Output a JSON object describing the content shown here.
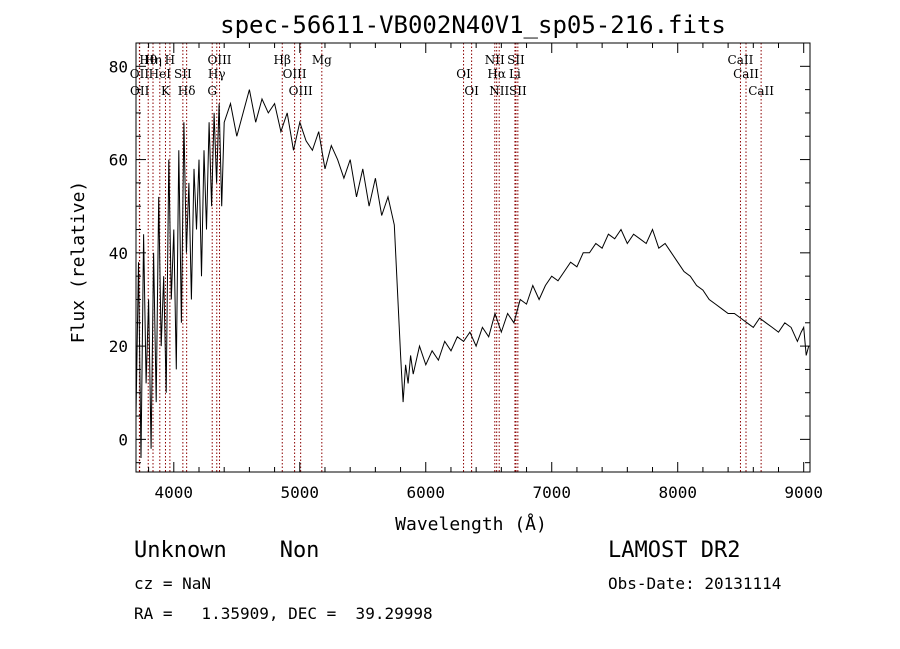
{
  "chart_data": {
    "type": "line",
    "title": "spec-56611-VB002N40V1_sp05-216.fits",
    "xlabel": "Wavelength (Å)",
    "ylabel": "Flux (relative)",
    "xlim": [
      3700,
      9050
    ],
    "ylim": [
      -7,
      85
    ],
    "xticks": [
      4000,
      5000,
      6000,
      7000,
      8000,
      9000
    ],
    "yticks": [
      0,
      20,
      40,
      60,
      80
    ],
    "grid": false,
    "line_color": "#000000",
    "marker_color": "#8b0000",
    "series": [
      {
        "x": [
          3700,
          3720,
          3740,
          3760,
          3780,
          3800,
          3820,
          3840,
          3860,
          3880,
          3900,
          3920,
          3940,
          3960,
          3980,
          4000,
          4020,
          4040,
          4060,
          4080,
          4100,
          4120,
          4140,
          4160,
          4180,
          4200,
          4220,
          4240,
          4260,
          4280,
          4300,
          4320,
          4340,
          4360,
          4380,
          4400,
          4450,
          4500,
          4550,
          4600,
          4650,
          4700,
          4750,
          4800,
          4850,
          4900,
          4950,
          5000,
          5050,
          5100,
          5150,
          5200,
          5250,
          5300,
          5350,
          5400,
          5450,
          5500,
          5550,
          5600,
          5650,
          5700,
          5750,
          5800,
          5820,
          5840,
          5860,
          5880,
          5900,
          5950,
          6000,
          6050,
          6100,
          6150,
          6200,
          6250,
          6300,
          6350,
          6400,
          6450,
          6500,
          6550,
          6600,
          6650,
          6700,
          6750,
          6800,
          6850,
          6900,
          6950,
          7000,
          7050,
          7100,
          7150,
          7200,
          7250,
          7300,
          7350,
          7400,
          7450,
          7500,
          7550,
          7600,
          7650,
          7700,
          7750,
          7800,
          7850,
          7900,
          7950,
          8000,
          8050,
          8100,
          8150,
          8200,
          8250,
          8300,
          8350,
          8400,
          8450,
          8500,
          8550,
          8600,
          8650,
          8700,
          8750,
          8800,
          8850,
          8900,
          8950,
          8980,
          9000,
          9020,
          9040
        ],
        "y": [
          5,
          38,
          -4,
          44,
          12,
          30,
          -2,
          40,
          8,
          52,
          20,
          35,
          10,
          60,
          30,
          45,
          15,
          62,
          25,
          68,
          40,
          55,
          30,
          58,
          45,
          60,
          35,
          62,
          45,
          68,
          50,
          70,
          55,
          72,
          50,
          68,
          72,
          65,
          70,
          75,
          68,
          73,
          70,
          72,
          66,
          70,
          62,
          68,
          64,
          62,
          66,
          58,
          63,
          60,
          56,
          60,
          52,
          58,
          50,
          56,
          48,
          52,
          46,
          18,
          8,
          16,
          12,
          18,
          14,
          20,
          16,
          19,
          17,
          21,
          19,
          22,
          21,
          23,
          20,
          24,
          22,
          27,
          23,
          27,
          25,
          30,
          29,
          33,
          30,
          33,
          35,
          34,
          36,
          38,
          37,
          40,
          40,
          42,
          41,
          44,
          43,
          45,
          42,
          44,
          43,
          42,
          45,
          41,
          42,
          40,
          38,
          36,
          35,
          33,
          32,
          30,
          29,
          28,
          27,
          27,
          26,
          25,
          24,
          26,
          25,
          24,
          23,
          25,
          24,
          21,
          23,
          24,
          18,
          20
        ]
      }
    ],
    "lines": [
      {
        "name": "Hθ",
        "x": 3797
      },
      {
        "name": "OII",
        "x": 3727
      },
      {
        "name": "OII",
        "x": 3729
      },
      {
        "name": "Hη",
        "x": 3835
      },
      {
        "name": "HeI",
        "x": 3889
      },
      {
        "name": "K",
        "x": 3934
      },
      {
        "name": "H",
        "x": 3969
      },
      {
        "name": "SII",
        "x": 4072
      },
      {
        "name": "Hδ",
        "x": 4102
      },
      {
        "name": "OIII",
        "x": 4363
      },
      {
        "name": "Hγ",
        "x": 4341
      },
      {
        "name": "G",
        "x": 4305
      },
      {
        "name": "Hβ",
        "x": 4861
      },
      {
        "name": "OIII",
        "x": 4959
      },
      {
        "name": "OIII",
        "x": 5007
      },
      {
        "name": "Mg",
        "x": 5175
      },
      {
        "name": "OI",
        "x": 6300
      },
      {
        "name": "OI",
        "x": 6364
      },
      {
        "name": "NII",
        "x": 6548
      },
      {
        "name": "Hα",
        "x": 6563
      },
      {
        "name": "NII",
        "x": 6583
      },
      {
        "name": "SII",
        "x": 6716
      },
      {
        "name": "Li",
        "x": 6708
      },
      {
        "name": "SII",
        "x": 6731
      },
      {
        "name": "CaII",
        "x": 8498
      },
      {
        "name": "CaII",
        "x": 8542
      },
      {
        "name": "CaII",
        "x": 8662
      }
    ]
  },
  "info": {
    "class_label": "Unknown    Non",
    "survey": "LAMOST DR2",
    "cz": "cz = NaN",
    "obs_date": "Obs-Date: 20131114",
    "coords": "RA =   1.35909, DEC =  39.29998"
  }
}
